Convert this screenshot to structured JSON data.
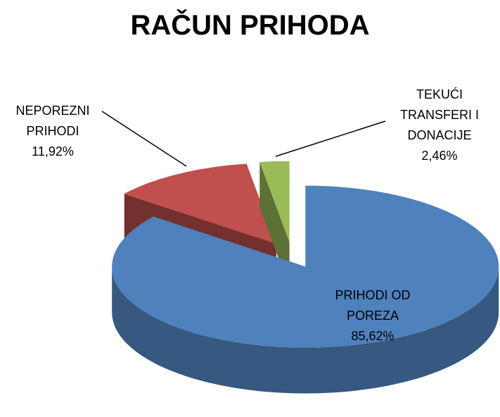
{
  "chart_data": {
    "type": "pie",
    "title": "RAČUN PRIHODA",
    "categories": [
      "PRIHODI OD POREZA",
      "NEPOREZNI PRIHODI",
      "TEKUĆI TRANSFERI I DONACIJE"
    ],
    "values": [
      85.62,
      11.92,
      2.46
    ],
    "value_labels": [
      "85,62%",
      "11,92%",
      "2,46%"
    ],
    "colors": [
      "#4f81bd",
      "#c0504d",
      "#9bbb59"
    ]
  }
}
